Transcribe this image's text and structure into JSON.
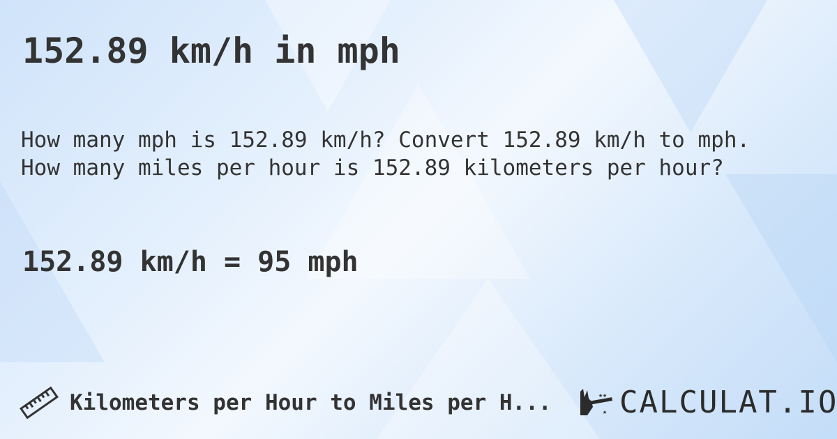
{
  "title": "152.89 km/h in mph",
  "question_line1": "How many mph is 152.89 km/h? Convert 152.89 km/h to mph.",
  "question_line2": "How many miles per hour is 152.89 kilometers per hour?",
  "result": "152.89 km/h = 95 mph",
  "footer": {
    "category": "Kilometers per Hour to Miles per H...",
    "icon": "ruler-icon"
  },
  "logo": {
    "text": "CALCULAT.IO",
    "icon": "magic-hand-icon"
  }
}
